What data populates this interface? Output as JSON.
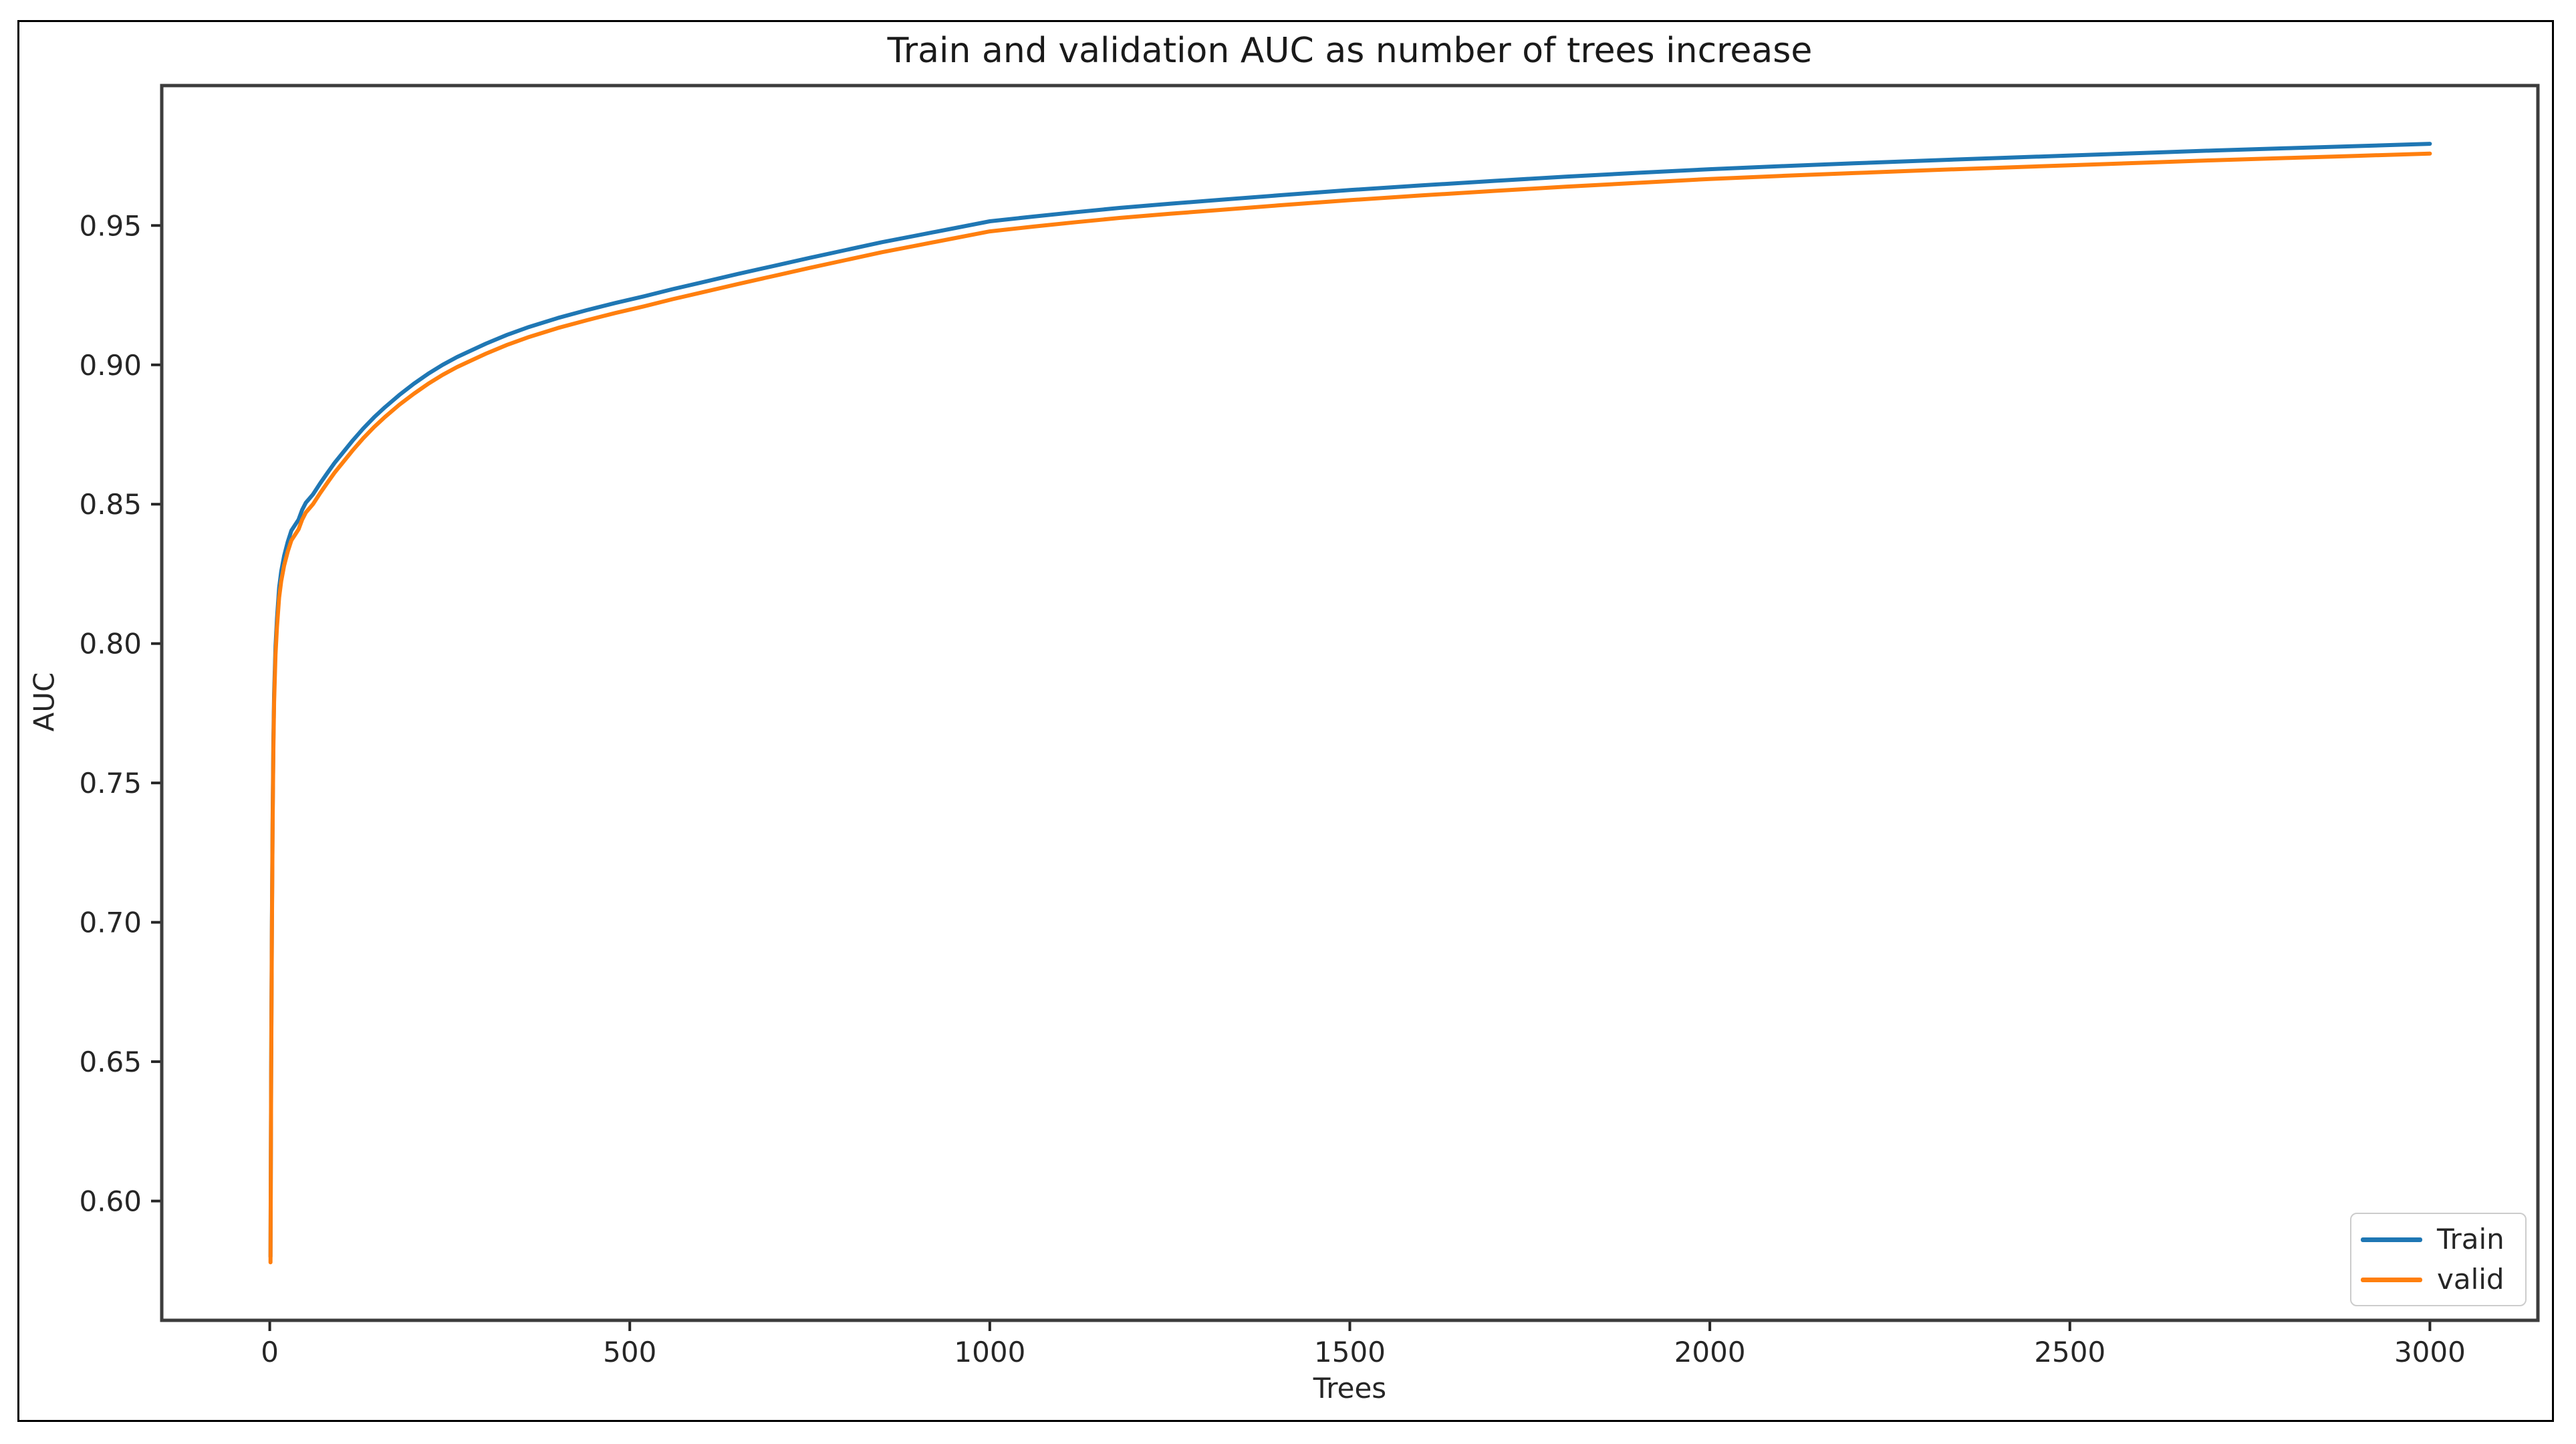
{
  "figure": {
    "background": "#ffffff",
    "border_color": "#000000"
  },
  "chart_data": {
    "type": "line",
    "title": "Train and validation AUC as number of trees increase",
    "xlabel": "Trees",
    "ylabel": "AUC",
    "xlim": [
      -150,
      3150
    ],
    "ylim": [
      0.5572,
      1.0002
    ],
    "xticks": [
      0,
      500,
      1000,
      1500,
      2000,
      2500,
      3000
    ],
    "yticks": [
      0.6,
      0.65,
      0.7,
      0.75,
      0.8,
      0.85,
      0.9,
      0.95
    ],
    "grid": false,
    "legend_position": "lower right",
    "axis_color": "#3c3c3c",
    "tick_label_color": "#262626",
    "x": [
      1,
      2,
      3,
      4,
      5,
      6,
      8,
      10,
      13,
      16,
      20,
      25,
      30,
      35,
      40,
      45,
      50,
      55,
      60,
      70,
      80,
      90,
      100,
      115,
      130,
      145,
      160,
      180,
      200,
      220,
      240,
      260,
      280,
      300,
      330,
      360,
      400,
      440,
      480,
      520,
      560,
      600,
      650,
      700,
      750,
      800,
      850,
      900,
      950,
      1000,
      1060,
      1120,
      1180,
      1250,
      1320,
      1400,
      1500,
      1600,
      1700,
      1800,
      1900,
      2000,
      2100,
      2200,
      2300,
      2400,
      2500,
      2600,
      2700,
      2800,
      2900,
      3000
    ],
    "series": [
      {
        "name": "Train",
        "color": "#1f77b4",
        "values": [
          0.58,
          0.648,
          0.7,
          0.738,
          0.765,
          0.782,
          0.799,
          0.809,
          0.82,
          0.826,
          0.8315,
          0.8365,
          0.8405,
          0.8425,
          0.8445,
          0.848,
          0.8505,
          0.852,
          0.8535,
          0.8575,
          0.8612,
          0.8648,
          0.868,
          0.8728,
          0.8772,
          0.8812,
          0.8848,
          0.8892,
          0.8932,
          0.8968,
          0.9,
          0.9028,
          0.9052,
          0.9076,
          0.9108,
          0.9136,
          0.9168,
          0.9196,
          0.9222,
          0.9246,
          0.9272,
          0.9296,
          0.9326,
          0.9355,
          0.9384,
          0.9412,
          0.944,
          0.9465,
          0.949,
          0.9515,
          0.9532,
          0.9548,
          0.9563,
          0.9578,
          0.9592,
          0.9608,
          0.9627,
          0.9644,
          0.966,
          0.9675,
          0.9689,
          0.9702,
          0.9713,
          0.9723,
          0.9733,
          0.9742,
          0.9751,
          0.976,
          0.9769,
          0.9777,
          0.9785,
          0.9793
        ]
      },
      {
        "name": "valid",
        "color": "#ff7f0e",
        "values": [
          0.578,
          0.645,
          0.697,
          0.735,
          0.762,
          0.779,
          0.796,
          0.806,
          0.8165,
          0.8225,
          0.828,
          0.833,
          0.837,
          0.839,
          0.841,
          0.8445,
          0.847,
          0.8485,
          0.85,
          0.854,
          0.8577,
          0.8613,
          0.8645,
          0.8693,
          0.8737,
          0.8777,
          0.8813,
          0.8857,
          0.8896,
          0.8932,
          0.8964,
          0.8992,
          0.9016,
          0.904,
          0.9072,
          0.91,
          0.9132,
          0.916,
          0.9186,
          0.921,
          0.9236,
          0.926,
          0.929,
          0.9319,
          0.9348,
          0.9376,
          0.9404,
          0.9429,
          0.9454,
          0.9479,
          0.9496,
          0.9512,
          0.9527,
          0.9542,
          0.9556,
          0.9572,
          0.9591,
          0.9608,
          0.9624,
          0.9639,
          0.9653,
          0.9667,
          0.9678,
          0.9688,
          0.9698,
          0.9707,
          0.9716,
          0.9725,
          0.9734,
          0.9742,
          0.975,
          0.9758
        ]
      }
    ]
  }
}
